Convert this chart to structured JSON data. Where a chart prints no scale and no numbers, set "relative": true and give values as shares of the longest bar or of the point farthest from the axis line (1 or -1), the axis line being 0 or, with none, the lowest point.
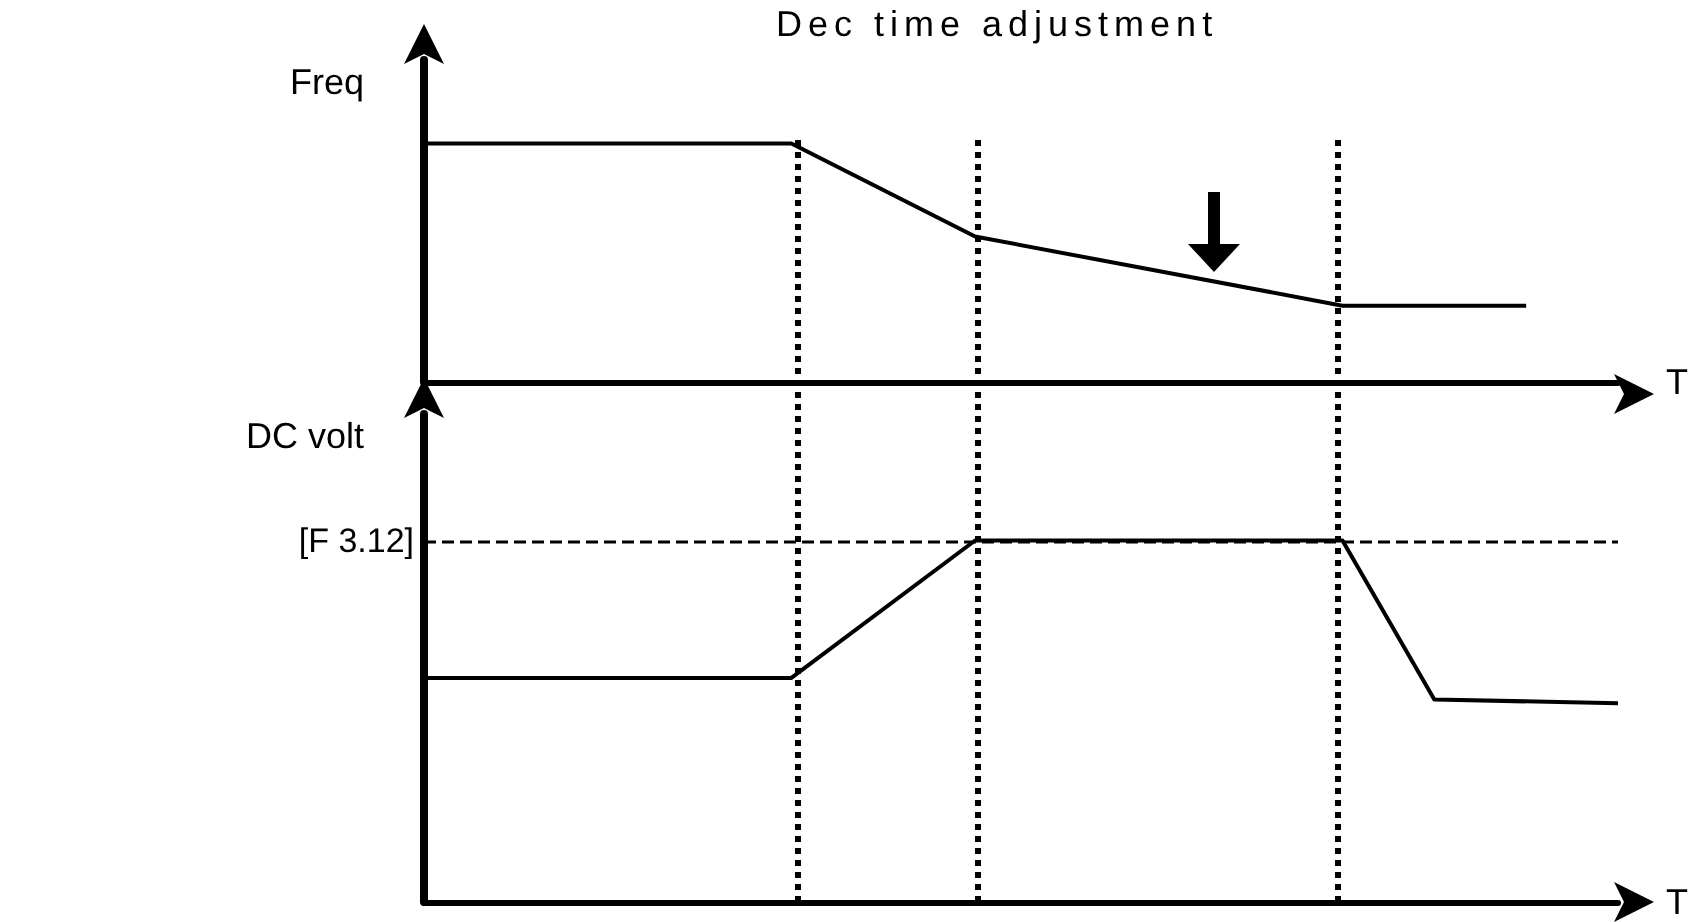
{
  "chart_data": [
    {
      "type": "line",
      "relative": true,
      "ylabel": "Freq",
      "xlabel": "T",
      "annotations": [
        "Dec time adjustment"
      ],
      "categories": [
        null,
        null,
        null,
        null,
        null,
        null,
        null,
        null,
        null,
        null,
        null,
        null,
        null,
        null
      ],
      "line_style": "solid",
      "marker": "none",
      "series": [
        {
          "color": "#000000",
          "values": [
            1,
            null,
            null,
            null,
            1,
            null,
            0.61,
            null,
            null,
            null,
            0.32,
            null,
            0.32,
            null
          ]
        }
      ]
    },
    {
      "type": "line",
      "relative": true,
      "ylabel": "DC volt",
      "xlabel": "T",
      "categories": [
        null,
        null,
        null,
        null,
        null,
        null,
        null,
        null,
        null,
        null,
        null,
        null,
        null,
        null
      ],
      "line_style": "solid",
      "marker": "none",
      "series": [
        {
          "color": "#000000",
          "values": [
            0.62,
            null,
            null,
            null,
            0.62,
            null,
            1,
            null,
            null,
            null,
            1,
            0.56,
            null,
            0.55
          ]
        }
      ],
      "ref_lines": [
        {
          "axis": "y",
          "value": 1,
          "label": "[F 3.12]",
          "color": "#000000",
          "line_style": "dashed"
        }
      ]
    }
  ]
}
